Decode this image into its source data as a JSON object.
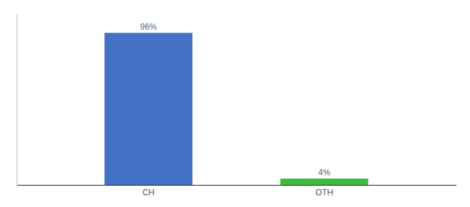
{
  "chart_data": {
    "type": "bar",
    "categories": [
      "CH",
      "OTH"
    ],
    "values": [
      96,
      4
    ],
    "value_labels": [
      "96%",
      "4%"
    ],
    "data_labels": true,
    "colors": [
      "#4472C4",
      "#3DBB3D"
    ],
    "ylim": [
      0,
      108
    ],
    "tick_labels": "x"
  }
}
